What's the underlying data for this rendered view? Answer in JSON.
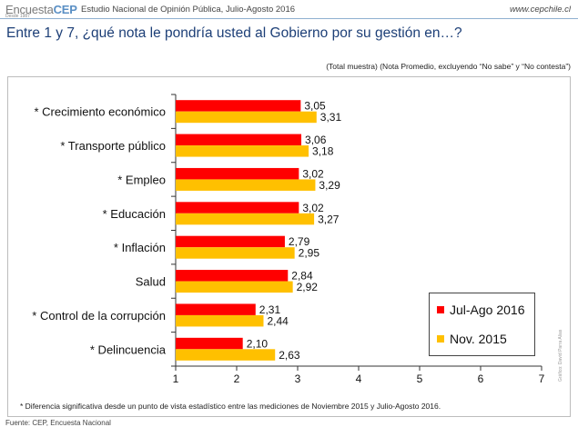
{
  "header": {
    "logo_light": "Encuesta",
    "logo_bold": "CEP",
    "logo_sub": "Desde 1987",
    "title": "Estudio Nacional de Opinión Pública, Julio-Agosto 2016",
    "url": "www.cepchile.cl"
  },
  "question": "Entre 1 y 7, ¿qué nota le pondría usted al Gobierno por su gestión en…?",
  "subnote": "(Total muestra) (Nota Promedio, excluyendo “No sabe” y “No contesta”)",
  "footnote": "* Diferencia significativa desde un punto de vista estadístico entre las mediciones de Noviembre 2015 y Julio-Agosto 2016.",
  "credit": "Gráfico: David Parra Alias",
  "bottom_text": "Fuente: CEP, Encuesta Nacional",
  "colors": {
    "series1": "#ff0000",
    "series2": "#ffc000"
  },
  "chart_data": {
    "type": "bar",
    "orientation": "horizontal",
    "categories": [
      "* Crecimiento económico",
      "* Transporte público",
      "* Empleo",
      "* Educación",
      "* Inflación",
      "Salud",
      "* Control de la corrupción",
      "* Delincuencia"
    ],
    "series": [
      {
        "name": "Jul-Ago 2016",
        "values": [
          3.05,
          3.06,
          3.02,
          3.02,
          2.79,
          2.84,
          2.31,
          2.1
        ],
        "labels": [
          "3,05",
          "3,06",
          "3,02",
          "3,02",
          "2,79",
          "2,84",
          "2,31",
          "2,10"
        ]
      },
      {
        "name": "Nov. 2015",
        "values": [
          3.31,
          3.18,
          3.29,
          3.27,
          2.95,
          2.92,
          2.44,
          2.63
        ],
        "labels": [
          "3,31",
          "3,18",
          "3,29",
          "3,27",
          "2,95",
          "2,92",
          "2,44",
          "2,63"
        ]
      }
    ],
    "xlim": [
      1,
      7
    ],
    "xticks": [
      "1",
      "2",
      "3",
      "4",
      "5",
      "6",
      "7"
    ],
    "legend_position": "bottom-right"
  }
}
